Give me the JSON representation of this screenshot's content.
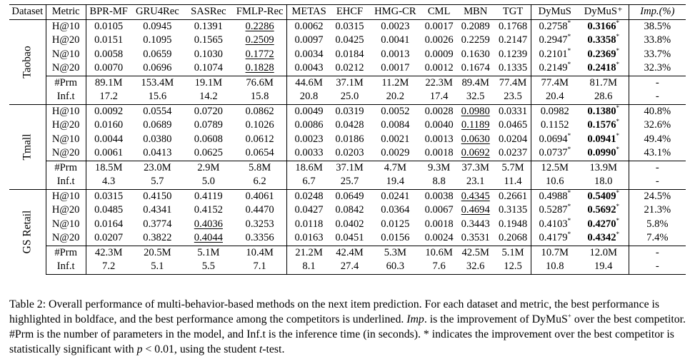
{
  "table": {
    "headers": [
      "Dataset",
      "Metric",
      "BPR-MF",
      "GRU4Rec",
      "SASRec",
      "FMLP-Rec",
      "METAS",
      "EHCF",
      "HMG-CR",
      "CML",
      "MBN",
      "TGT",
      "DyMuS",
      "DyMuS⁺",
      "Imp.(%)"
    ],
    "datasets": [
      {
        "name": "Taobao",
        "rows": [
          {
            "metric": "H@10",
            "values": [
              "0.0105",
              "0.0945",
              "0.1391",
              "0.2286",
              "0.0062",
              "0.0315",
              "0.0023",
              "0.0017",
              "0.2089",
              "0.1768",
              "0.2758*",
              "0.3166*",
              "38.5%"
            ],
            "best": [
              11
            ],
            "underlined": [
              3
            ]
          },
          {
            "metric": "H@20",
            "values": [
              "0.0151",
              "0.1095",
              "0.1565",
              "0.2509",
              "0.0097",
              "0.0425",
              "0.0041",
              "0.0026",
              "0.2259",
              "0.2147",
              "0.2947*",
              "0.3358*",
              "33.8%"
            ],
            "best": [
              11
            ],
            "underlined": [
              3
            ]
          },
          {
            "metric": "N@10",
            "values": [
              "0.0058",
              "0.0659",
              "0.1030",
              "0.1772",
              "0.0034",
              "0.0184",
              "0.0013",
              "0.0009",
              "0.1630",
              "0.1239",
              "0.2101*",
              "0.2369*",
              "33.7%"
            ],
            "best": [
              11
            ],
            "underlined": [
              3
            ]
          },
          {
            "metric": "N@20",
            "values": [
              "0.0070",
              "0.0696",
              "0.1074",
              "0.1828",
              "0.0043",
              "0.0212",
              "0.0017",
              "0.0012",
              "0.1674",
              "0.1335",
              "0.2149*",
              "0.2418*",
              "32.3%"
            ],
            "best": [
              11
            ],
            "underlined": [
              3
            ]
          },
          {
            "metric": "#Prm",
            "values": [
              "89.1M",
              "153.4M",
              "19.1M",
              "76.6M",
              "44.6M",
              "37.1M",
              "11.2M",
              "22.3M",
              "89.4M",
              "77.4M",
              "77.4M",
              "81.7M",
              "-"
            ],
            "best": [],
            "underlined": []
          },
          {
            "metric": "Inf.t",
            "values": [
              "17.2",
              "15.6",
              "14.2",
              "15.8",
              "20.8",
              "25.0",
              "20.2",
              "17.4",
              "32.5",
              "23.5",
              "20.4",
              "28.6",
              "-"
            ],
            "best": [],
            "underlined": []
          }
        ]
      },
      {
        "name": "Tmall",
        "rows": [
          {
            "metric": "H@10",
            "values": [
              "0.0092",
              "0.0554",
              "0.0720",
              "0.0862",
              "0.0049",
              "0.0319",
              "0.0052",
              "0.0028",
              "0.0980",
              "0.0331",
              "0.0982",
              "0.1380*",
              "40.8%"
            ],
            "best": [
              11
            ],
            "underlined": [
              8
            ]
          },
          {
            "metric": "H@20",
            "values": [
              "0.0160",
              "0.0689",
              "0.0789",
              "0.1026",
              "0.0086",
              "0.0428",
              "0.0084",
              "0.0040",
              "0.1189",
              "0.0465",
              "0.1152",
              "0.1576*",
              "32.6%"
            ],
            "best": [
              11
            ],
            "underlined": [
              8
            ]
          },
          {
            "metric": "N@10",
            "values": [
              "0.0044",
              "0.0380",
              "0.0608",
              "0.0612",
              "0.0023",
              "0.0186",
              "0.0021",
              "0.0013",
              "0.0630",
              "0.0204",
              "0.0694*",
              "0.0941*",
              "49.4%"
            ],
            "best": [
              11
            ],
            "underlined": [
              8
            ]
          },
          {
            "metric": "N@20",
            "values": [
              "0.0061",
              "0.0413",
              "0.0625",
              "0.0654",
              "0.0033",
              "0.0203",
              "0.0029",
              "0.0018",
              "0.0692",
              "0.0237",
              "0.0737*",
              "0.0990*",
              "43.1%"
            ],
            "best": [
              11
            ],
            "underlined": [
              8
            ]
          },
          {
            "metric": "#Prm",
            "values": [
              "18.5M",
              "23.0M",
              "2.9M",
              "5.8M",
              "18.6M",
              "37.1M",
              "4.7M",
              "9.3M",
              "37.3M",
              "5.7M",
              "12.5M",
              "13.9M",
              "-"
            ],
            "best": [],
            "underlined": []
          },
          {
            "metric": "Inf.t",
            "values": [
              "4.3",
              "5.7",
              "5.0",
              "6.2",
              "6.7",
              "25.7",
              "19.4",
              "8.8",
              "23.1",
              "11.4",
              "10.6",
              "18.0",
              "-"
            ],
            "best": [],
            "underlined": []
          }
        ]
      },
      {
        "name": "GS Retail",
        "rows": [
          {
            "metric": "H@10",
            "values": [
              "0.0315",
              "0.4150",
              "0.4119",
              "0.4061",
              "0.0248",
              "0.0649",
              "0.0241",
              "0.0038",
              "0.4345",
              "0.2661",
              "0.4988*",
              "0.5409*",
              "24.5%"
            ],
            "best": [
              11
            ],
            "underlined": [
              8
            ]
          },
          {
            "metric": "H@20",
            "values": [
              "0.0485",
              "0.4341",
              "0.4152",
              "0.4470",
              "0.0427",
              "0.0842",
              "0.0364",
              "0.0067",
              "0.4694",
              "0.3135",
              "0.5287*",
              "0.5692*",
              "21.3%"
            ],
            "best": [
              11
            ],
            "underlined": [
              8
            ]
          },
          {
            "metric": "N@10",
            "values": [
              "0.0164",
              "0.3774",
              "0.4036",
              "0.3253",
              "0.0118",
              "0.0402",
              "0.0125",
              "0.0018",
              "0.3443",
              "0.1948",
              "0.4103*",
              "0.4270*",
              "5.8%"
            ],
            "best": [
              11
            ],
            "underlined": [
              2
            ]
          },
          {
            "metric": "N@20",
            "values": [
              "0.0207",
              "0.3822",
              "0.4044",
              "0.3356",
              "0.0163",
              "0.0451",
              "0.0156",
              "0.0024",
              "0.3531",
              "0.2068",
              "0.4179*",
              "0.4342*",
              "7.4%"
            ],
            "best": [
              11
            ],
            "underlined": [
              2
            ]
          },
          {
            "metric": "#Prm",
            "values": [
              "42.3M",
              "20.5M",
              "5.1M",
              "10.4M",
              "21.2M",
              "42.4M",
              "5.3M",
              "10.6M",
              "42.5M",
              "5.1M",
              "10.7M",
              "12.0M",
              "-"
            ],
            "best": [],
            "underlined": []
          },
          {
            "metric": "Inf.t",
            "values": [
              "7.2",
              "5.1",
              "5.5",
              "7.1",
              "8.1",
              "27.4",
              "60.3",
              "7.6",
              "32.6",
              "12.5",
              "10.8",
              "19.4",
              "-"
            ],
            "best": [],
            "underlined": []
          }
        ]
      }
    ]
  },
  "caption": {
    "s1": "Table 2: Overall performance of multi-behavior-based methods on the next item prediction. For each dataset and metric, the best performance is highlighted in boldface, and the best performance among the competitors is underlined. ",
    "imp_label": "Imp",
    "s2": ". is the improvement of DyMuS",
    "plus": "+",
    "s3": " over the best competitor. #Prm is the number of parameters in the model, and Inf.t is the inference time (in seconds). * indicates the improvement over the best competitor is statistically significant with ",
    "p_var": "p",
    "s4": " < 0.01, using the student ",
    "t_var": "t",
    "s5": "-test."
  }
}
